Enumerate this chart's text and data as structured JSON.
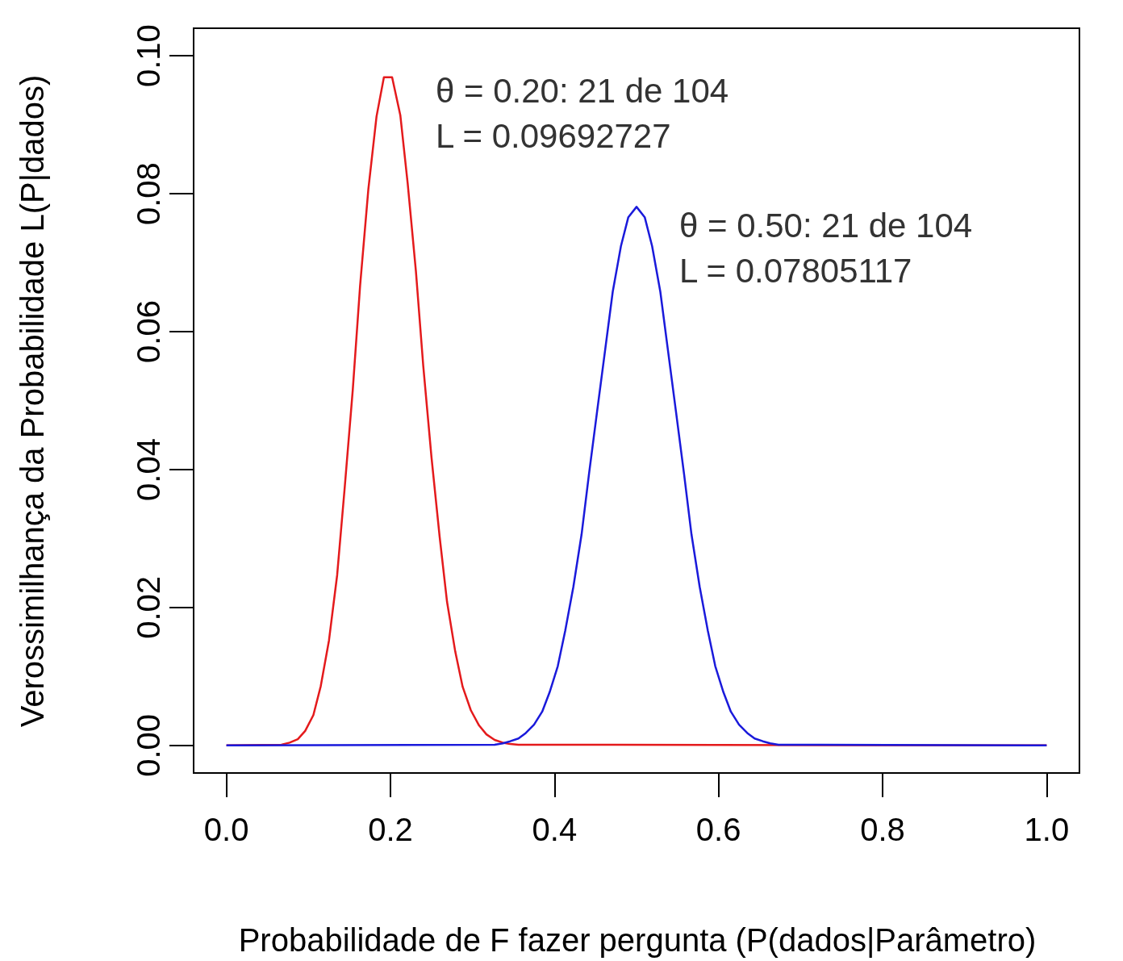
{
  "chart_data": {
    "type": "line",
    "xlabel": "Probabilidade de F fazer pergunta (P(dados|Parâmetro)",
    "ylabel": "Verossimilhança da Probabilidade L(P|dados)",
    "xlim": [
      -0.04,
      1.04
    ],
    "xticks": [
      {
        "value": 0,
        "label": "0.0"
      },
      0.2,
      0.4,
      0.6,
      0.8,
      {
        "value": 1,
        "label": "1.0"
      }
    ],
    "ylim": [
      -0.004,
      0.104
    ],
    "yticks": [
      {
        "value": 0,
        "label": "0.00"
      },
      0.02,
      0.04,
      0.06,
      0.08,
      {
        "value": 0.1,
        "label": "0.10"
      }
    ],
    "grid": false,
    "marker": "none",
    "line_style": "solid",
    "series": [
      {
        "color": "#e41a1c",
        "x": [
          0,
          0.067,
          0.077,
          0.087,
          0.096,
          0.106,
          0.115,
          0.125,
          0.135,
          0.144,
          0.154,
          0.163,
          0.173,
          0.183,
          0.192,
          0.202,
          0.212,
          0.221,
          0.231,
          0.24,
          0.25,
          0.26,
          0.269,
          0.279,
          0.288,
          0.298,
          0.308,
          0.317,
          0.327,
          0.337,
          0.346,
          0.356,
          1
        ],
        "values": [
          0,
          0.0001,
          0.0004,
          0.0009,
          0.0021,
          0.0044,
          0.0086,
          0.0152,
          0.0247,
          0.0371,
          0.0515,
          0.0667,
          0.0806,
          0.0912,
          0.0969,
          0.0969,
          0.0914,
          0.0815,
          0.0688,
          0.055,
          0.0418,
          0.0302,
          0.0208,
          0.0136,
          0.0085,
          0.0051,
          0.0029,
          0.0016,
          0.0008,
          0.0004,
          0.0002,
          0.0001,
          0
        ]
      },
      {
        "color": "#1a1adb",
        "x": [
          0,
          0.327,
          0.337,
          0.346,
          0.356,
          0.365,
          0.375,
          0.385,
          0.394,
          0.404,
          0.413,
          0.423,
          0.433,
          0.442,
          0.452,
          0.462,
          0.471,
          0.481,
          0.49,
          0.5,
          0.51,
          0.519,
          0.529,
          0.538,
          0.548,
          0.558,
          0.567,
          0.577,
          0.587,
          0.596,
          0.606,
          0.615,
          0.625,
          0.635,
          0.644,
          0.654,
          0.663,
          0.673,
          1
        ],
        "values": [
          0,
          0.0001,
          0.0003,
          0.0006,
          0.001,
          0.0018,
          0.003,
          0.0049,
          0.0077,
          0.0115,
          0.0166,
          0.023,
          0.0306,
          0.0393,
          0.0485,
          0.0576,
          0.0658,
          0.0724,
          0.0766,
          0.0781,
          0.0766,
          0.0724,
          0.0658,
          0.0576,
          0.0485,
          0.0393,
          0.0306,
          0.023,
          0.0166,
          0.0115,
          0.0077,
          0.0049,
          0.003,
          0.0018,
          0.001,
          0.0006,
          0.0003,
          0.0001,
          0
        ]
      }
    ],
    "annotations": [
      "θ = 0.20: 21 de 104\nL = 0.09692727",
      "θ = 0.50: 21 de 104\nL = 0.07805117"
    ]
  }
}
